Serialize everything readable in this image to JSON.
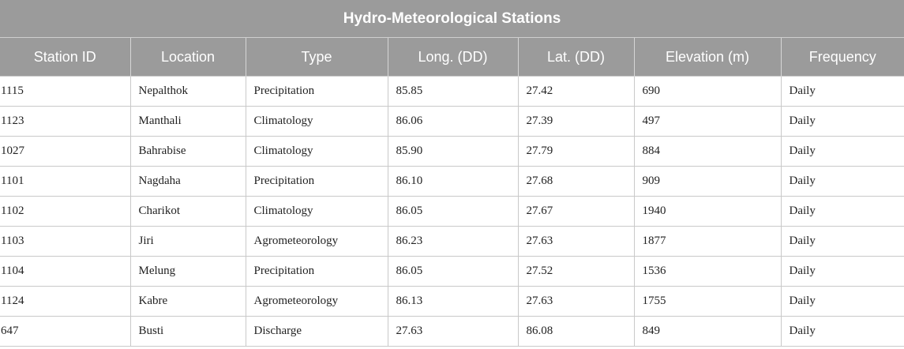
{
  "table": {
    "title": "Hydro-Meteorological Stations",
    "headers": [
      "Station ID",
      "Location",
      "Type",
      "Long. (DD)",
      "Lat. (DD)",
      "Elevation (m)",
      "Frequency"
    ],
    "rows": [
      [
        "1115",
        "Nepalthok",
        "Precipitation",
        "85.85",
        "27.42",
        "690",
        "Daily"
      ],
      [
        "1123",
        "Manthali",
        "Climatology",
        "86.06",
        "27.39",
        "497",
        "Daily"
      ],
      [
        "1027",
        "Bahrabise",
        "Climatology",
        "85.90",
        "27.79",
        "884",
        "Daily"
      ],
      [
        "1101",
        "Nagdaha",
        "Precipitation",
        "86.10",
        "27.68",
        "909",
        "Daily"
      ],
      [
        "1102",
        "Charikot",
        "Climatology",
        "86.05",
        "27.67",
        "1940",
        "Daily"
      ],
      [
        "1103",
        "Jiri",
        "Agrometeorology",
        "86.23",
        "27.63",
        "1877",
        "Daily"
      ],
      [
        "1104",
        "Melung",
        "Precipitation",
        "86.05",
        "27.52",
        "1536",
        "Daily"
      ],
      [
        "1124",
        "Kabre",
        "Agrometeorology",
        "86.13",
        "27.63",
        "1755",
        "Daily"
      ],
      [
        "647",
        "Busti",
        "Discharge",
        "27.63",
        "86.08",
        "849",
        "Daily"
      ]
    ]
  }
}
